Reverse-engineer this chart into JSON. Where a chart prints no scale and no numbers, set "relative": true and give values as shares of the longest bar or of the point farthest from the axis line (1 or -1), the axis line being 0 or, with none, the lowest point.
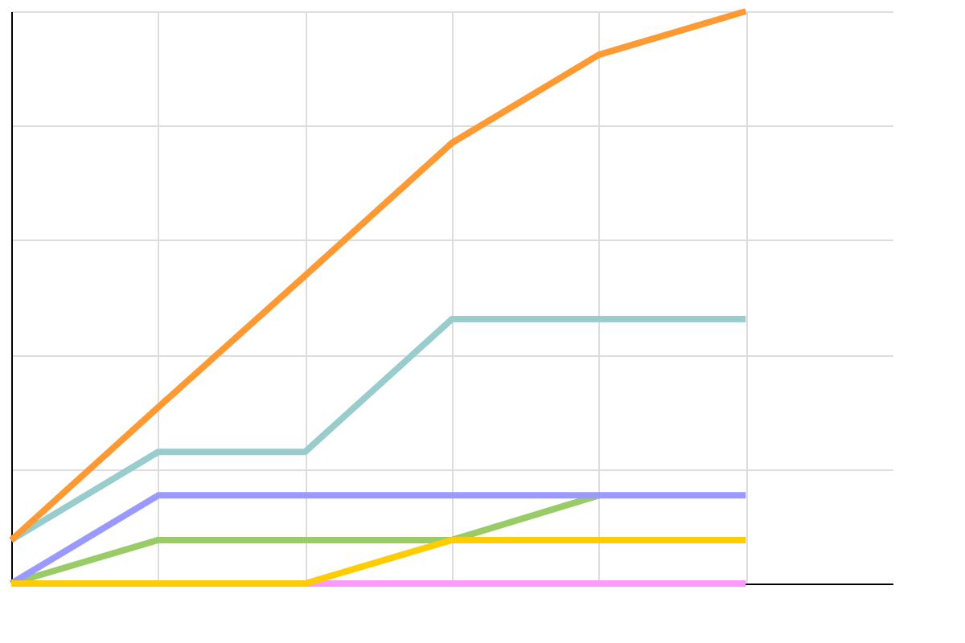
{
  "chart_data": {
    "type": "line",
    "relative": true,
    "grid": true,
    "legend": false,
    "marker": "none",
    "line_style": "solid",
    "categories": [
      null,
      null,
      null,
      null,
      null,
      null
    ],
    "series": [
      {
        "color": "#ff99ff",
        "values": [
          0,
          0,
          0,
          0,
          0,
          0
        ]
      },
      {
        "color": "#99cc66",
        "values": [
          0,
          0.076,
          0.076,
          0.076,
          0.154,
          null
        ]
      },
      {
        "color": "#9999ff",
        "values": [
          0,
          0.154,
          0.154,
          0.154,
          0.154,
          0.154
        ]
      },
      {
        "color": "#ffcc00",
        "values": [
          0,
          0,
          0,
          0.076,
          0.076,
          0.076
        ]
      },
      {
        "color": "#99cccc",
        "values": [
          0.076,
          0.23,
          0.23,
          0.462,
          0.462,
          0.462
        ]
      },
      {
        "color": "#ff9933",
        "values": [
          0.076,
          0.308,
          0.538,
          0.77,
          0.924,
          1
        ]
      }
    ]
  }
}
